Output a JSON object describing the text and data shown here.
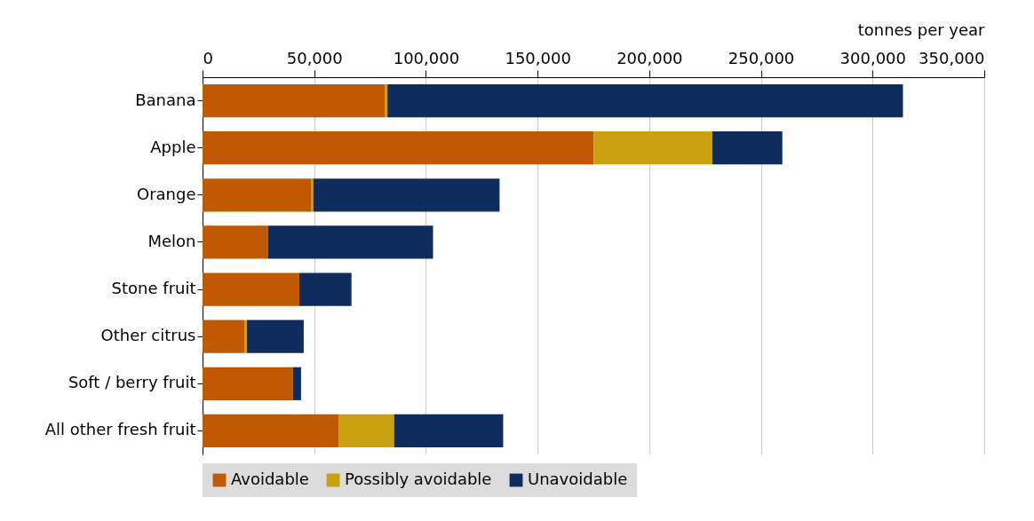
{
  "chart_data": {
    "type": "bar",
    "orientation": "horizontal",
    "stacked": true,
    "xlabel": "tonnes per year",
    "categories": [
      "Banana",
      "Apple",
      "Orange",
      "Melon",
      "Stone fruit",
      "Other citrus",
      "Soft / berry fruit",
      "All other fresh fruit"
    ],
    "series": [
      {
        "name": "Avoidable",
        "color": "#c05a00",
        "values": [
          81800,
          175100,
          48800,
          29400,
          43300,
          18700,
          40500,
          61100
        ]
      },
      {
        "name": "Possibly avoidable",
        "color": "#c9a010",
        "values": [
          1000,
          53200,
          800,
          0,
          0,
          1200,
          0,
          24700
        ]
      },
      {
        "name": "Unavoidable",
        "color": "#0f2d5c",
        "values": [
          230800,
          31300,
          83400,
          73800,
          23400,
          25400,
          3600,
          48800
        ]
      }
    ],
    "xlim": [
      0,
      350000
    ],
    "xticks": [
      0,
      {
        "value": 50000,
        "label": "50,000"
      },
      {
        "value": 100000,
        "label": "100,000"
      },
      {
        "value": 150000,
        "label": "150,000"
      },
      {
        "value": 200000,
        "label": "200,000"
      },
      {
        "value": 250000,
        "label": "250,000"
      },
      {
        "value": 300000,
        "label": "300,000"
      },
      {
        "value": 350000,
        "label": "350,000"
      }
    ],
    "grid": "x",
    "legend": "bottom"
  }
}
